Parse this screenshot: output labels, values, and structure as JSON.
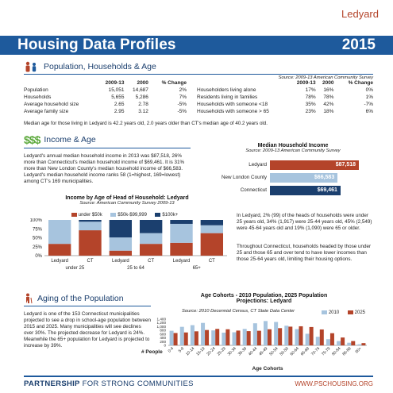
{
  "header": {
    "town": "Ledyard",
    "title": "Housing Data Profiles",
    "year": "2015"
  },
  "population": {
    "heading": "Population, Households & Age",
    "source": "Source: 2009-13 American Community Survey",
    "left_headers": [
      "2009-13",
      "2000",
      "% Change"
    ],
    "left_rows": [
      {
        "label": "Population",
        "a": "15,051",
        "b": "14,687",
        "c": "2%"
      },
      {
        "label": "Households",
        "a": "5,655",
        "b": "5,286",
        "c": "7%"
      },
      {
        "label": "Average household size",
        "a": "2.65",
        "b": "2.78",
        "c": "-5%"
      },
      {
        "label": "Average family size",
        "a": "2.95",
        "b": "3.12",
        "c": "-5%"
      }
    ],
    "right_headers": [
      "2009-13",
      "2000",
      "% Change"
    ],
    "right_rows": [
      {
        "label": "Householders living alone",
        "a": "17%",
        "b": "16%",
        "c": "0%"
      },
      {
        "label": "Residents living in families",
        "a": "78%",
        "b": "78%",
        "c": "1%"
      },
      {
        "label": "Households with someone <18",
        "a": "35%",
        "b": "42%",
        "c": "-7%"
      },
      {
        "label": "Households with someone > 65",
        "a": "23%",
        "b": "18%",
        "c": "6%"
      }
    ],
    "median_note": "Median age for those living in Ledyard is 42.2 years old, 2.0 years older than CT's median age of 40.2 years old."
  },
  "income": {
    "heading": "Income & Age",
    "paragraph": "Ledyard's annual median household income in 2013 was $87,518, 26% more than Connecticut's median household income of $69,461. It is 31% more than New London County's median household income of $66,583. Ledyard's median household income ranks 58 (1=highest, 169=lowest) among CT's 169 municipalities.",
    "mhi_title": "Median Household Income",
    "mhi_source": "Source: 2009-13 American Community Survey",
    "mhi_rows": [
      {
        "label": "Ledyard",
        "value": "$87,518",
        "amount": 87518,
        "color": "#b4442a"
      },
      {
        "label": "New London County",
        "value": "$66,583",
        "amount": 66583,
        "color": "#a7c4de"
      },
      {
        "label": "Connecticut",
        "value": "$69,461",
        "amount": 69461,
        "color": "#1b3f6e"
      }
    ],
    "age_paragraph_1": "In Ledyard, 2% (99) of the heads of households were under 25 years old, 34% (1,917) were 25-44 years old, 45% (2,549) were 45-64 years old and 19% (1,090) were 65 or older.",
    "age_paragraph_2": "Throughout Connecticut, households headed by those under 25 and those 65 and over tend to have lower incomes than those 25-64 years old, limiting their housing options."
  },
  "chart_income_age": {
    "title": "Income by Age of Head of Household: Ledyard",
    "source": "Source: American Community Survey 2009-13",
    "legend": [
      "under $50k",
      "$50k-$99,999",
      "$100k+"
    ],
    "y_ticks": [
      "100%",
      "75%",
      "50%",
      "25%",
      "0%"
    ],
    "bar_labels": [
      "Ledyard",
      "CT",
      "Ledyard",
      "CT",
      "Ledyard",
      "CT"
    ],
    "group_labels": [
      "under 25",
      "25 to 64",
      "65+"
    ]
  },
  "aging": {
    "heading": "Aging of the Population",
    "paragraph": "Ledyard is one of the 153 Connecticut municipalities projected to see a drop in school-age population between 2015 and 2025. Many municipalities will see declines over 30%. The projected decrease for Ledyard is 24%. Meanwhile the 65+ population for Ledyard is projected to increase by 39%."
  },
  "chart_cohorts": {
    "title_1": "Age Cohorts - 2010 Population, 2025 Population",
    "title_2": "Projections: Ledyard",
    "source": "Source: 2010 Decennial Census, CT State Data Center",
    "legend": [
      "2010",
      "2025"
    ],
    "y_label": "# People",
    "x_label": "Age Cohorts",
    "y_ticks": [
      "1,400",
      "1,200",
      "1,000",
      "800",
      "600",
      "400",
      "200",
      "0"
    ],
    "categories": [
      "0-4",
      "5-9",
      "10-14",
      "15-19",
      "20-24",
      "25-29",
      "30-34",
      "35-39",
      "40-44",
      "45-49",
      "50-54",
      "55-59",
      "60-64",
      "65-69",
      "70-74",
      "75-79",
      "80-84",
      "85-89",
      "90+"
    ]
  },
  "chart_data": [
    {
      "type": "bar",
      "title": "Income by Age of Head of Household: Ledyard",
      "categories": [
        "under 25 Ledyard",
        "under 25 CT",
        "25 to 64 Ledyard",
        "25 to 64 CT",
        "65+ Ledyard",
        "65+ CT"
      ],
      "series": [
        {
          "name": "under $50k",
          "values": [
            33,
            71,
            14,
            33,
            36,
            63
          ]
        },
        {
          "name": "$50k-$99,999",
          "values": [
            67,
            24,
            37,
            30,
            53,
            22
          ]
        },
        {
          "name": "$100k+",
          "values": [
            0,
            5,
            49,
            37,
            11,
            15
          ]
        }
      ],
      "ylim": [
        0,
        100
      ],
      "stacked": true
    },
    {
      "type": "bar",
      "title": "Age Cohorts - 2010 Population, 2025 Population Projections: Ledyard",
      "xlabel": "Age Cohorts",
      "ylabel": "# People",
      "categories": [
        "0-4",
        "5-9",
        "10-14",
        "15-19",
        "20-24",
        "25-29",
        "30-34",
        "35-39",
        "40-44",
        "45-49",
        "50-54",
        "55-59",
        "60-64",
        "65-69",
        "70-74",
        "75-79",
        "80-84",
        "85-89",
        "90+"
      ],
      "series": [
        {
          "name": "2010",
          "values": [
            780,
            990,
            1080,
            1200,
            800,
            680,
            700,
            880,
            1180,
            1300,
            1250,
            1050,
            870,
            620,
            460,
            330,
            230,
            140,
            60
          ]
        },
        {
          "name": "2025",
          "values": [
            660,
            690,
            750,
            820,
            880,
            860,
            790,
            760,
            780,
            860,
            920,
            1000,
            1020,
            980,
            850,
            650,
            420,
            230,
            120
          ]
        }
      ],
      "ylim": [
        0,
        1400
      ]
    }
  ],
  "footer": {
    "left_bold": "PARTNERSHIP",
    "left_rest": " FOR STRONG COMMUNITIES",
    "right": "WWW.PSCHOUSING.ORG"
  },
  "colors": {
    "blue": "#1e5a9c",
    "navy": "#1b3f6e",
    "rust": "#b4442a",
    "light": "#a7c4de"
  }
}
